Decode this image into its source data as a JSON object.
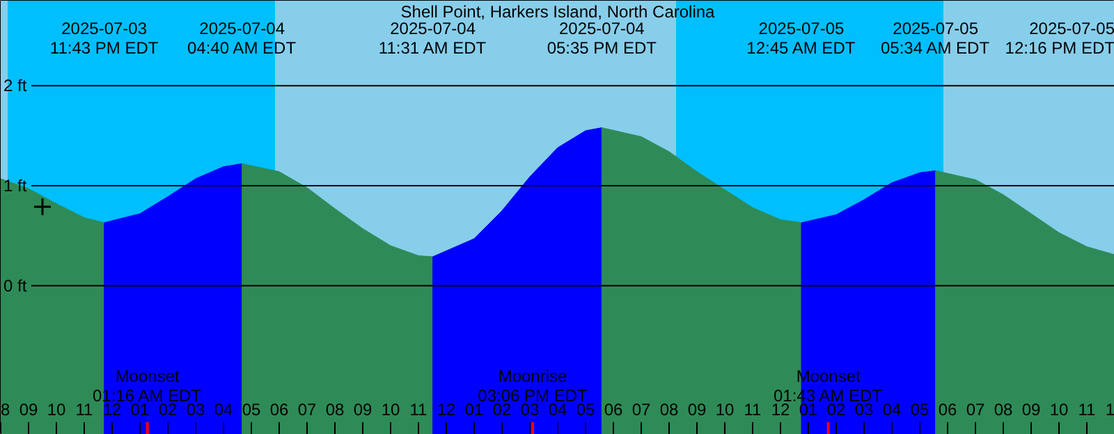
{
  "chart_data": {
    "type": "area",
    "title": "Shell Point, Harkers Island, North Carolina",
    "xlim": [
      "2025-07-03T20:00",
      "2025-07-05T12:00"
    ],
    "ylim": [
      -1.49,
      2.85
    ],
    "yticks": [
      {
        "value": 0,
        "label": "0 ft"
      },
      {
        "value": 1,
        "label": "1 ft"
      },
      {
        "value": 2,
        "label": "2 ft"
      }
    ],
    "grid": "y",
    "xticks": [
      {
        "value": "2025-07-03T20:00",
        "label": "8"
      },
      {
        "value": "2025-07-03T21:00",
        "label": "09"
      },
      {
        "value": "2025-07-03T22:00",
        "label": "10"
      },
      {
        "value": "2025-07-03T23:00",
        "label": "11"
      },
      {
        "value": "2025-07-04T00:00",
        "label": "12"
      },
      {
        "value": "2025-07-04T01:00",
        "label": "01"
      },
      {
        "value": "2025-07-04T02:00",
        "label": "02"
      },
      {
        "value": "2025-07-04T03:00",
        "label": "03"
      },
      {
        "value": "2025-07-04T04:00",
        "label": "04"
      },
      {
        "value": "2025-07-04T05:00",
        "label": "05"
      },
      {
        "value": "2025-07-04T06:00",
        "label": "06"
      },
      {
        "value": "2025-07-04T07:00",
        "label": "07"
      },
      {
        "value": "2025-07-04T08:00",
        "label": "08"
      },
      {
        "value": "2025-07-04T09:00",
        "label": "09"
      },
      {
        "value": "2025-07-04T10:00",
        "label": "10"
      },
      {
        "value": "2025-07-04T11:00",
        "label": "11"
      },
      {
        "value": "2025-07-04T12:00",
        "label": "12"
      },
      {
        "value": "2025-07-04T13:00",
        "label": "01"
      },
      {
        "value": "2025-07-04T14:00",
        "label": "02"
      },
      {
        "value": "2025-07-04T15:00",
        "label": "03"
      },
      {
        "value": "2025-07-04T16:00",
        "label": "04"
      },
      {
        "value": "2025-07-04T17:00",
        "label": "05"
      },
      {
        "value": "2025-07-04T18:00",
        "label": "06"
      },
      {
        "value": "2025-07-04T19:00",
        "label": "07"
      },
      {
        "value": "2025-07-04T20:00",
        "label": "08"
      },
      {
        "value": "2025-07-04T21:00",
        "label": "09"
      },
      {
        "value": "2025-07-04T22:00",
        "label": "10"
      },
      {
        "value": "2025-07-04T23:00",
        "label": "11"
      },
      {
        "value": "2025-07-05T00:00",
        "label": "12"
      },
      {
        "value": "2025-07-05T01:00",
        "label": "01"
      },
      {
        "value": "2025-07-05T02:00",
        "label": "02"
      },
      {
        "value": "2025-07-05T03:00",
        "label": "03"
      },
      {
        "value": "2025-07-05T04:00",
        "label": "04"
      },
      {
        "value": "2025-07-05T05:00",
        "label": "05"
      },
      {
        "value": "2025-07-05T06:00",
        "label": "06"
      },
      {
        "value": "2025-07-05T07:00",
        "label": "07"
      },
      {
        "value": "2025-07-05T08:00",
        "label": "08"
      },
      {
        "value": "2025-07-05T09:00",
        "label": "09"
      },
      {
        "value": "2025-07-05T10:00",
        "label": "10"
      },
      {
        "value": "2025-07-05T11:00",
        "label": "11"
      },
      {
        "value": "2025-07-05T12:00",
        "label": "1"
      }
    ],
    "bands": [
      {
        "axis": "x",
        "from": "2025-07-03T20:00",
        "to": "2025-07-03T20:15",
        "color": "#87ceeb"
      },
      {
        "axis": "x",
        "from": "2025-07-03T20:15",
        "to": "2025-07-04T05:51",
        "color": "#00bfff"
      },
      {
        "axis": "x",
        "from": "2025-07-04T05:51",
        "to": "2025-07-04T20:15",
        "color": "#87ceeb"
      },
      {
        "axis": "x",
        "from": "2025-07-04T20:15",
        "to": "2025-07-05T05:51",
        "color": "#00bfff"
      },
      {
        "axis": "x",
        "from": "2025-07-05T05:51",
        "to": "2025-07-05T12:00",
        "color": "#87ceeb"
      }
    ],
    "series": [
      {
        "color": "#2e8b57",
        "x": [
          "2025-07-03T20:00",
          "2025-07-03T21:00",
          "2025-07-03T22:00",
          "2025-07-03T23:00",
          "2025-07-03T23:43"
        ],
        "values": [
          1.07,
          0.97,
          0.82,
          0.68,
          0.63
        ]
      },
      {
        "color": "#0000ff",
        "x": [
          "2025-07-03T23:43",
          "2025-07-04T01:00",
          "2025-07-04T02:00",
          "2025-07-04T03:00",
          "2025-07-04T04:00",
          "2025-07-04T04:40"
        ],
        "values": [
          0.63,
          0.72,
          0.89,
          1.07,
          1.19,
          1.22
        ]
      },
      {
        "color": "#2e8b57",
        "x": [
          "2025-07-04T04:40",
          "2025-07-04T06:00",
          "2025-07-04T07:00",
          "2025-07-04T08:00",
          "2025-07-04T09:00",
          "2025-07-04T10:00",
          "2025-07-04T11:00",
          "2025-07-04T11:31"
        ],
        "values": [
          1.22,
          1.14,
          0.98,
          0.77,
          0.57,
          0.4,
          0.3,
          0.29
        ]
      },
      {
        "color": "#0000ff",
        "x": [
          "2025-07-04T11:31",
          "2025-07-04T13:00",
          "2025-07-04T14:00",
          "2025-07-04T15:00",
          "2025-07-04T16:00",
          "2025-07-04T17:00",
          "2025-07-04T17:35"
        ],
        "values": [
          0.29,
          0.47,
          0.75,
          1.09,
          1.38,
          1.55,
          1.58
        ]
      },
      {
        "color": "#2e8b57",
        "x": [
          "2025-07-04T17:35",
          "2025-07-04T19:00",
          "2025-07-04T20:00",
          "2025-07-04T21:00",
          "2025-07-04T22:00",
          "2025-07-04T23:00",
          "2025-07-05T00:00",
          "2025-07-05T00:45"
        ],
        "values": [
          1.58,
          1.49,
          1.34,
          1.14,
          0.96,
          0.78,
          0.66,
          0.63
        ]
      },
      {
        "color": "#0000ff",
        "x": [
          "2025-07-05T00:45",
          "2025-07-05T02:00",
          "2025-07-05T03:00",
          "2025-07-05T04:00",
          "2025-07-05T05:00",
          "2025-07-05T05:34"
        ],
        "values": [
          0.63,
          0.71,
          0.86,
          1.03,
          1.13,
          1.15
        ]
      },
      {
        "color": "#2e8b57",
        "x": [
          "2025-07-05T05:34",
          "2025-07-05T07:00",
          "2025-07-05T08:00",
          "2025-07-05T09:00",
          "2025-07-05T10:00",
          "2025-07-05T11:00",
          "2025-07-05T12:00"
        ],
        "values": [
          1.15,
          1.06,
          0.91,
          0.72,
          0.53,
          0.39,
          0.31
        ]
      },
      {
        "type": "scatter",
        "marker": "cross",
        "color": "#000000",
        "x": [
          "2025-07-03T21:30"
        ],
        "values": [
          0.79
        ]
      }
    ],
    "annotations": [
      "2025-07-03\n11:43 PM EDT",
      "2025-07-04\n04:40 AM EDT",
      "2025-07-04\n11:31 AM EDT",
      "2025-07-04\n05:35 PM EDT",
      "2025-07-05\n12:45 AM EDT",
      "2025-07-05\n05:34 AM EDT",
      "2025-07-05\n12:16 PM EDT"
    ],
    "ref_lines": [
      {
        "axis": "x",
        "value": "2025-07-04T01:16",
        "label": "Moonset\n01:16 AM EDT",
        "color": "#ff0000"
      },
      {
        "axis": "x",
        "value": "2025-07-04T15:06",
        "label": "Moonrise\n03:06 PM EDT",
        "color": "#ff0000"
      },
      {
        "axis": "x",
        "value": "2025-07-05T01:43",
        "label": "Moonset\n01:43 AM EDT",
        "color": "#ff0000"
      }
    ]
  }
}
